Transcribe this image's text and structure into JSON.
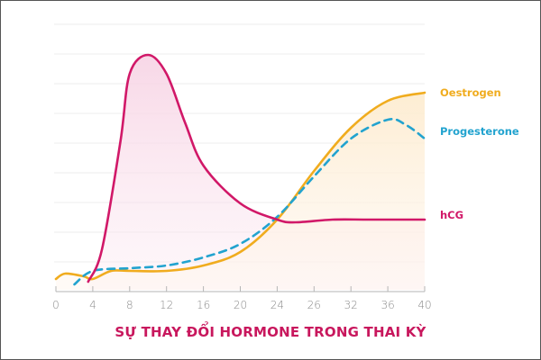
{
  "chart_data": {
    "type": "line",
    "title": "SỰ THAY ĐỔI HORMONE TRONG THAI KỲ",
    "xlabel": "",
    "ylabel": "",
    "x_ticks": [
      "0",
      "4",
      "8",
      "12",
      "16",
      "20",
      "24",
      "26",
      "32",
      "36",
      "40"
    ],
    "xlim": [
      0,
      40
    ],
    "ylim": [
      0,
      100
    ],
    "grid": true,
    "legend_position": "right (inline labels)",
    "series": [
      {
        "name": "Oestrogen",
        "color": "#f0ac1e",
        "style": "solid",
        "fill": "#fdf0dc",
        "points": [
          [
            0,
            4
          ],
          [
            1,
            6
          ],
          [
            3,
            5
          ],
          [
            4,
            4
          ],
          [
            6,
            7
          ],
          [
            8,
            7
          ],
          [
            12,
            7
          ],
          [
            16,
            9
          ],
          [
            20,
            14
          ],
          [
            24,
            26
          ],
          [
            28,
            44
          ],
          [
            32,
            60
          ],
          [
            36,
            70
          ],
          [
            40,
            73
          ]
        ]
      },
      {
        "name": "Progesterone",
        "color": "#22a3cf",
        "style": "dashed",
        "fill": null,
        "points": [
          [
            2,
            2
          ],
          [
            4,
            7
          ],
          [
            8,
            8
          ],
          [
            12,
            9
          ],
          [
            16,
            12
          ],
          [
            20,
            17
          ],
          [
            24,
            27
          ],
          [
            28,
            42
          ],
          [
            32,
            56
          ],
          [
            36,
            63
          ],
          [
            38,
            61
          ],
          [
            40,
            56
          ]
        ]
      },
      {
        "name": "hCG",
        "color": "#d11868",
        "style": "solid",
        "fill": "#fbe6f0",
        "points": [
          [
            3.5,
            3
          ],
          [
            5,
            15
          ],
          [
            7,
            55
          ],
          [
            8,
            80
          ],
          [
            10,
            87
          ],
          [
            12,
            80
          ],
          [
            14,
            62
          ],
          [
            16,
            46
          ],
          [
            20,
            32
          ],
          [
            24,
            26
          ],
          [
            26,
            25
          ],
          [
            30,
            26
          ],
          [
            34,
            26
          ],
          [
            40,
            26
          ]
        ]
      }
    ]
  },
  "legend": {
    "oestrogen": "Oestrogen",
    "progesterone": "Progesterone",
    "hcg": "hCG"
  },
  "colors": {
    "oestrogen": "#f0ac1e",
    "progesterone": "#22a3cf",
    "hcg": "#d11868",
    "title": "#c8175d",
    "grid": "#ececec",
    "axis": "#b5b5b5",
    "tick_text": "#8a8a8a"
  }
}
